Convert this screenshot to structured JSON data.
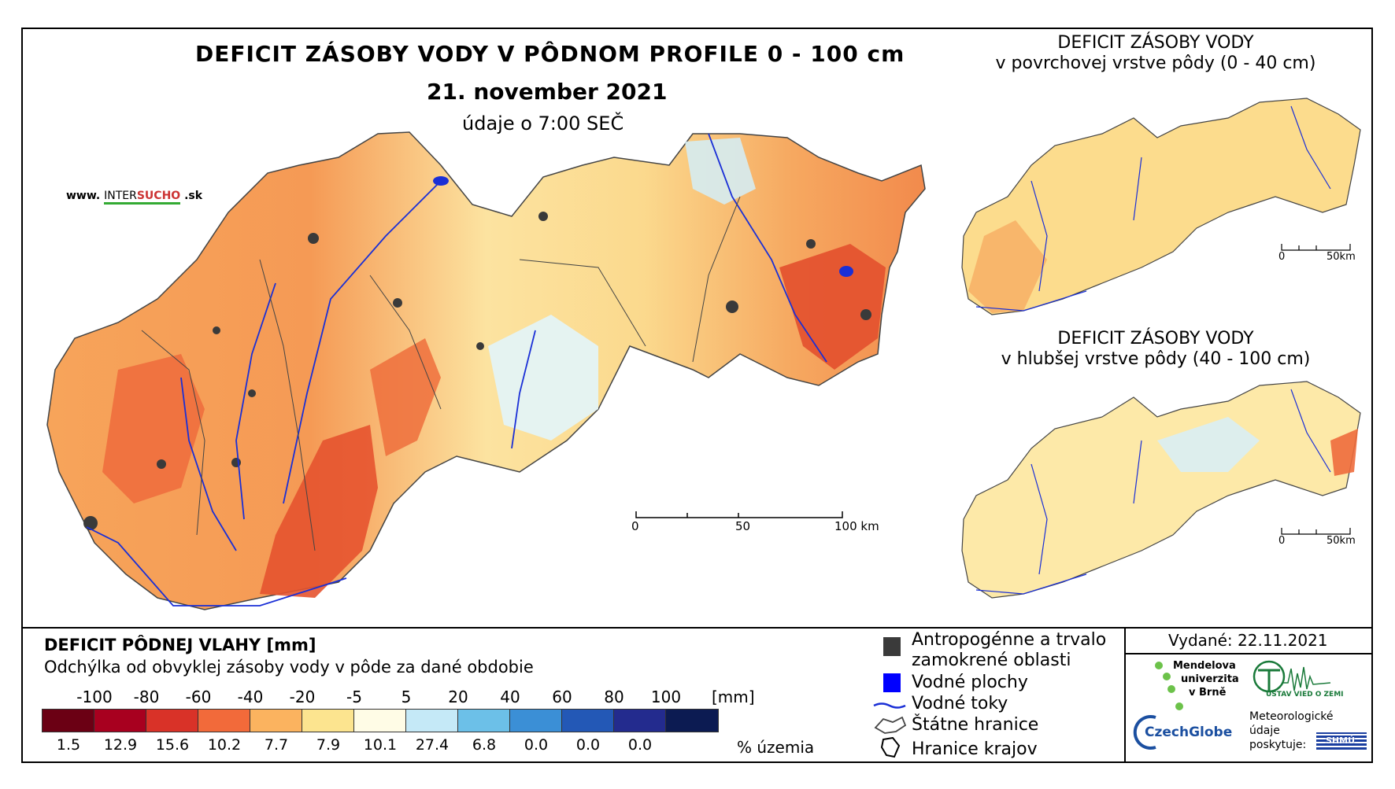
{
  "map": {
    "title": "DEFICIT ZÁSOBY VODY V PÔDNOM PROFILE 0 - 100 cm",
    "date": "21. november 2021",
    "time_note": "údaje o 7:00 SEČ",
    "website": {
      "prefix": "www.",
      "inter": "INTER",
      "sucho": "SUCHO",
      "suffix": ".sk"
    },
    "scale": {
      "ticks": [
        "0",
        "50",
        "100 km"
      ]
    }
  },
  "inset_top": {
    "title_line1": "DEFICIT ZÁSOBY VODY",
    "title_line2": "v povrchovej vrstve pôdy (0 - 40 cm)",
    "scale": {
      "ticks": [
        "0",
        "50km"
      ]
    }
  },
  "inset_bottom": {
    "title_line1": "DEFICIT ZÁSOBY VODY",
    "title_line2": "v hlubšej vrstve pôdy (40 - 100 cm)",
    "scale": {
      "ticks": [
        "0",
        "50km"
      ]
    }
  },
  "legend": {
    "title": "DEFICIT PÔDNEJ VLAHY [mm]",
    "subtitle": "Odchýlka od obvyklej zásoby vody v pôde za dané obdobie",
    "tick_labels": [
      "-100",
      "-80",
      "-60",
      "-40",
      "-20",
      "-5",
      "5",
      "20",
      "40",
      "60",
      "80",
      "100"
    ],
    "unit": "[mm]",
    "classes": [
      {
        "color": "#6b0014",
        "percent": "1.5"
      },
      {
        "color": "#a8001f",
        "percent": "12.9"
      },
      {
        "color": "#d93228",
        "percent": "15.6"
      },
      {
        "color": "#f26a3a",
        "percent": "10.2"
      },
      {
        "color": "#fbb35f",
        "percent": "7.7"
      },
      {
        "color": "#fce48f",
        "percent": "7.9"
      },
      {
        "color": "#fffce6",
        "percent": "10.1"
      },
      {
        "color": "#c5e9f7",
        "percent": "27.4"
      },
      {
        "color": "#6cc0e8",
        "percent": "6.8"
      },
      {
        "color": "#3b8fd6",
        "percent": "0.0"
      },
      {
        "color": "#2358b6",
        "percent": "0.0"
      },
      {
        "color": "#232b8e",
        "percent": "0.0"
      },
      {
        "color": "#0c1b52",
        "percent": ""
      }
    ],
    "percent_label": "% územia"
  },
  "symbols": {
    "anthropogenic_line1": "Antropogénne a trvalo",
    "anthropogenic_line2": "zamokrené oblasti",
    "water_bodies": "Vodné plochy",
    "rivers": "Vodné toky",
    "state_border": "Štátne hranice",
    "region_border": "Hranice krajov"
  },
  "issued": "Vydané: 22.11.2021",
  "logos": {
    "mendel_line1": "Mendelova",
    "mendel_line2": "univerzita",
    "mendel_line3": "v Brně",
    "ustav": "ÚSTAV VIED O ZEMI",
    "czechglobe": "CzechGlobe",
    "meteo_line1": "Meteorologické",
    "meteo_line2": "údaje",
    "meteo_line3": "poskytuje:",
    "shmu": "SHMÚ"
  },
  "colors": {
    "map_fill": "#fbc877",
    "river": "#1a2fd6",
    "urban": "#3a3a3a"
  }
}
